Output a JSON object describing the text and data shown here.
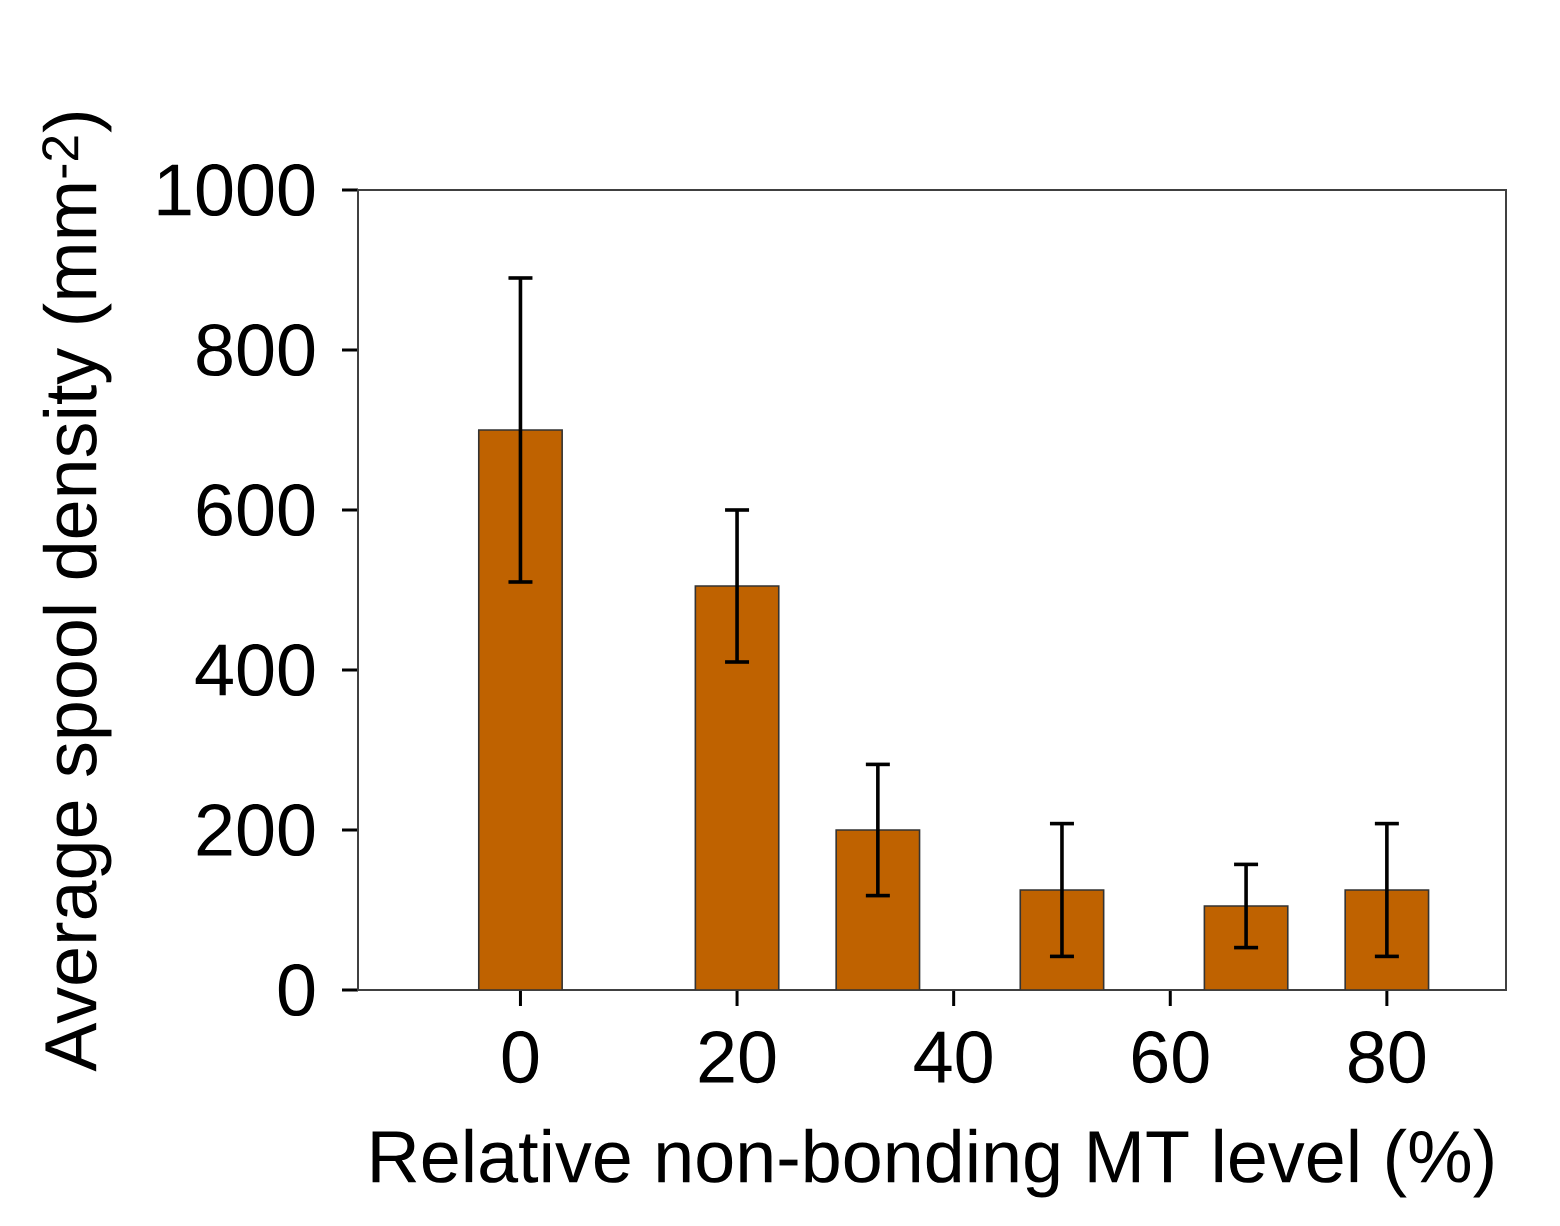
{
  "chart_data": {
    "type": "bar",
    "xlabel": "Relative non-bonding MT level (%)",
    "ylabel": "Average spool density (mm$^{-2}$)",
    "x": [
      0,
      20,
      33,
      50,
      67,
      80
    ],
    "values": [
      700,
      505,
      200,
      125,
      105,
      125
    ],
    "errors": [
      190,
      95,
      82,
      83,
      52,
      83
    ],
    "color": "#bf6200",
    "xlim": [
      -15,
      91
    ],
    "xticks": [
      0,
      20,
      40,
      60,
      80
    ],
    "ylim": [
      0,
      1000
    ],
    "yticks": [
      0,
      200,
      400,
      600,
      800,
      1000
    ]
  }
}
